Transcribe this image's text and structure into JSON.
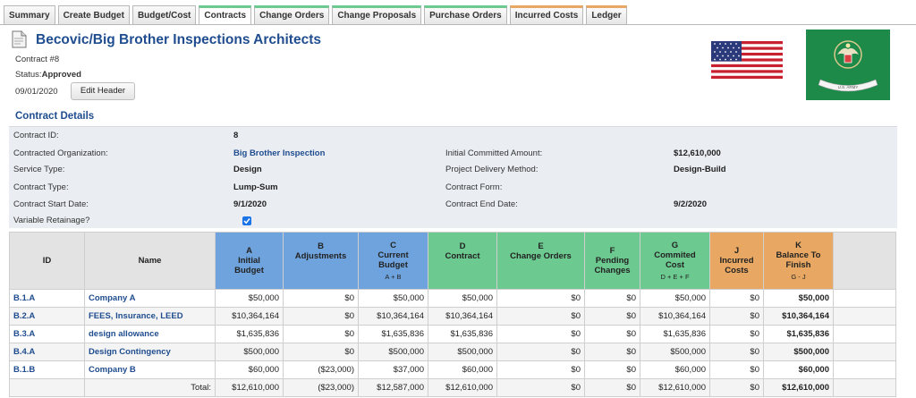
{
  "tabs": [
    {
      "label": "Summary",
      "style": "plain"
    },
    {
      "label": "Create Budget",
      "style": "plain"
    },
    {
      "label": "Budget/Cost",
      "style": "plain"
    },
    {
      "label": "Contracts",
      "style": "green"
    },
    {
      "label": "Change Orders",
      "style": "green"
    },
    {
      "label": "Change Proposals",
      "style": "green"
    },
    {
      "label": "Purchase Orders",
      "style": "green"
    },
    {
      "label": "Incurred Costs",
      "style": "orange"
    },
    {
      "label": "Ledger",
      "style": "orange"
    }
  ],
  "header": {
    "title": "Becovic/Big Brother Inspections Architects",
    "contract_number": "Contract #8",
    "status_label": "Status:",
    "status_value": "Approved",
    "date": "09/01/2020",
    "edit_button": "Edit Header",
    "flag_banner_text": "U.S. ARMY"
  },
  "section_title": "Contract Details",
  "details": {
    "contract_id_label": "Contract ID:",
    "contract_id": "8",
    "org_label": "Contracted Organization:",
    "org": "Big Brother Inspection",
    "service_label": "Service Type:",
    "service": "Design",
    "type_label": "Contract Type:",
    "type": "Lump-Sum",
    "start_label": "Contract Start Date:",
    "start": "9/1/2020",
    "retainage_label": "Variable Retainage?",
    "retainage_checked": true,
    "committed_label": "Initial Committed Amount:",
    "committed": "$12,610,000",
    "delivery_label": "Project Delivery Method:",
    "delivery": "Design-Build",
    "form_label": "Contract Form:",
    "form": "",
    "end_label": "Contract End Date:",
    "end": "9/2/2020"
  },
  "table": {
    "columns": [
      {
        "letter": "",
        "title": "ID",
        "formula": "",
        "color": "gray"
      },
      {
        "letter": "",
        "title": "Name",
        "formula": "",
        "color": "gray"
      },
      {
        "letter": "A",
        "title": "Initial\nBudget",
        "formula": "",
        "color": "blue"
      },
      {
        "letter": "B",
        "title": "Adjustments",
        "formula": "",
        "color": "blue"
      },
      {
        "letter": "C",
        "title": "Current\nBudget",
        "formula": "A + B",
        "color": "blue"
      },
      {
        "letter": "D",
        "title": "Contract",
        "formula": "",
        "color": "green"
      },
      {
        "letter": "E",
        "title": "Change Orders",
        "formula": "",
        "color": "green"
      },
      {
        "letter": "F",
        "title": "Pending\nChanges",
        "formula": "",
        "color": "green"
      },
      {
        "letter": "G",
        "title": "Commited\nCost",
        "formula": "D + E + F",
        "color": "green"
      },
      {
        "letter": "J",
        "title": "Incurred\nCosts",
        "formula": "",
        "color": "orange"
      },
      {
        "letter": "K",
        "title": "Balance To\nFinish",
        "formula": "G - J",
        "color": "orange"
      },
      {
        "letter": "",
        "title": "",
        "formula": "",
        "color": "gray"
      }
    ],
    "rows": [
      {
        "id": "B.1.A",
        "name": "Company A",
        "a": "$50,000",
        "b": "$0",
        "c": "$50,000",
        "d": "$50,000",
        "e": "$0",
        "f": "$0",
        "g": "$50,000",
        "j": "$0",
        "k": "$50,000"
      },
      {
        "id": "B.2.A",
        "name": "FEES, Insurance, LEED",
        "a": "$10,364,164",
        "b": "$0",
        "c": "$10,364,164",
        "d": "$10,364,164",
        "e": "$0",
        "f": "$0",
        "g": "$10,364,164",
        "j": "$0",
        "k": "$10,364,164"
      },
      {
        "id": "B.3.A",
        "name": "design allowance",
        "a": "$1,635,836",
        "b": "$0",
        "c": "$1,635,836",
        "d": "$1,635,836",
        "e": "$0",
        "f": "$0",
        "g": "$1,635,836",
        "j": "$0",
        "k": "$1,635,836"
      },
      {
        "id": "B.4.A",
        "name": "Design Contingency",
        "a": "$500,000",
        "b": "$0",
        "c": "$500,000",
        "d": "$500,000",
        "e": "$0",
        "f": "$0",
        "g": "$500,000",
        "j": "$0",
        "k": "$500,000"
      },
      {
        "id": "B.1.B",
        "name": "Company B",
        "a": "$60,000",
        "b": "($23,000)",
        "c": "$37,000",
        "d": "$60,000",
        "e": "$0",
        "f": "$0",
        "g": "$60,000",
        "j": "$0",
        "k": "$60,000"
      }
    ],
    "total": {
      "label": "Total:",
      "a": "$12,610,000",
      "b": "($23,000)",
      "c": "$12,587,000",
      "d": "$12,610,000",
      "e": "$0",
      "f": "$0",
      "g": "$12,610,000",
      "j": "$0",
      "k": "$12,610,000"
    }
  },
  "colors": {
    "title_blue": "#1f4d8f",
    "budget_blue": "#6fa3dd",
    "contract_green": "#6cc98f",
    "cost_orange": "#e8a863",
    "details_bg": "#eaedf2"
  }
}
